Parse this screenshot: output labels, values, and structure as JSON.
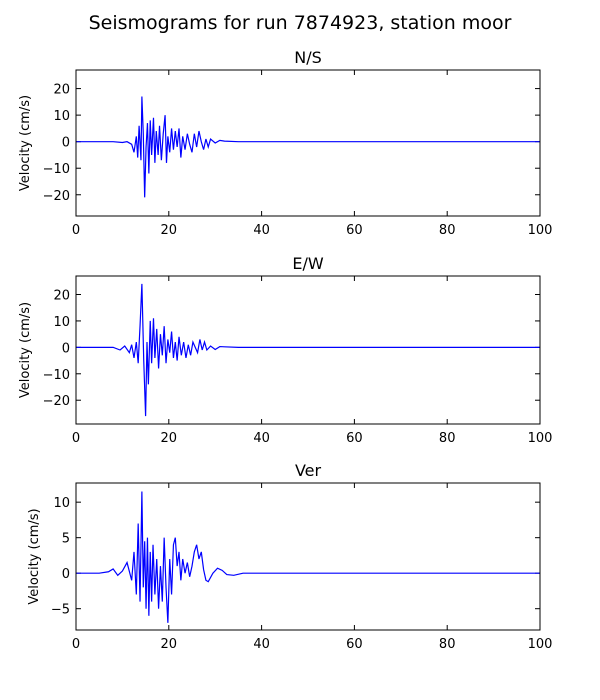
{
  "title": "Seismograms for run 7874923, station moor",
  "chart_data": [
    {
      "type": "line",
      "title": "N/S",
      "ylabel": "Velocity (cm/s)",
      "xlim": [
        0,
        100
      ],
      "xticks": [
        0,
        20,
        40,
        60,
        80,
        100
      ],
      "ylim": [
        -28,
        27
      ],
      "yticks": [
        {
          "value": -20,
          "label": "−20"
        },
        {
          "value": -10,
          "label": "−10"
        },
        0,
        10,
        20
      ],
      "series": [
        {
          "color": "#0000ff",
          "x": [
            0,
            5,
            8,
            10,
            11,
            12,
            12.5,
            13,
            13.3,
            13.6,
            14,
            14.2,
            14.5,
            14.8,
            15.1,
            15.4,
            15.7,
            16,
            16.3,
            16.7,
            17,
            17.3,
            17.7,
            18,
            18.4,
            18.8,
            19.2,
            19.5,
            19.8,
            20.2,
            20.6,
            21,
            21.4,
            21.8,
            22.2,
            22.6,
            23,
            23.5,
            24,
            24.5,
            25,
            25.5,
            26,
            26.5,
            27,
            27.5,
            28,
            28.5,
            29,
            30,
            31,
            32,
            35,
            40,
            100
          ],
          "values": [
            0,
            0,
            0,
            -0.3,
            0,
            -1,
            -4,
            2,
            -6,
            6,
            -7,
            17,
            3,
            -21,
            -2,
            7,
            -12,
            8,
            -5,
            9,
            -8,
            4,
            -5,
            6,
            -7,
            3,
            10,
            -8,
            2,
            -4,
            5,
            -3,
            4,
            -2,
            5,
            -6,
            2,
            -3,
            3,
            -1,
            -4,
            3,
            -2,
            4,
            0,
            -3,
            1,
            -2,
            1,
            -0.5,
            0.5,
            0.2,
            0,
            0,
            0
          ]
        }
      ]
    },
    {
      "type": "line",
      "title": "E/W",
      "ylabel": "Velocity (cm/s)",
      "xlim": [
        0,
        100
      ],
      "xticks": [
        0,
        20,
        40,
        60,
        80,
        100
      ],
      "ylim": [
        -29,
        27
      ],
      "yticks": [
        {
          "value": -20,
          "label": "−20"
        },
        {
          "value": -10,
          "label": "−10"
        },
        0,
        10,
        20
      ],
      "series": [
        {
          "color": "#0000ff",
          "x": [
            0,
            5,
            8,
            9.5,
            10.5,
            11.5,
            12,
            12.5,
            13,
            13.4,
            13.8,
            14.2,
            14.6,
            15,
            15.3,
            15.6,
            16,
            16.3,
            16.7,
            17,
            17.4,
            17.8,
            18.2,
            18.6,
            19,
            19.4,
            19.8,
            20.2,
            20.6,
            21,
            21.4,
            21.8,
            22.2,
            22.7,
            23.2,
            23.7,
            24.2,
            24.7,
            25.2,
            25.7,
            26.2,
            26.7,
            27.2,
            27.7,
            28.2,
            29,
            30,
            31,
            32,
            35,
            40,
            100
          ],
          "values": [
            0,
            0,
            0,
            -1,
            0.5,
            -2,
            1,
            -4,
            2,
            -6,
            8,
            24,
            -5,
            -26,
            2,
            -14,
            10,
            -6,
            11,
            -4,
            7,
            -8,
            5,
            -3,
            8,
            -6,
            3,
            -2,
            6,
            -4,
            2,
            -5,
            4,
            -3,
            2,
            -4,
            1,
            -3,
            2,
            0,
            -2,
            3,
            -1,
            2,
            -1,
            0.5,
            -0.8,
            0.3,
            0.2,
            0,
            0,
            0
          ]
        }
      ]
    },
    {
      "type": "line",
      "title": "Ver",
      "ylabel": "Velocity (cm/s)",
      "xlim": [
        0,
        100
      ],
      "xticks": [
        0,
        20,
        40,
        60,
        80,
        100
      ],
      "ylim": [
        -8,
        12.7
      ],
      "yticks": [
        {
          "value": -5,
          "label": "−5"
        },
        0,
        5,
        10
      ],
      "series": [
        {
          "color": "#0000ff",
          "x": [
            0,
            5,
            7,
            8,
            9,
            10,
            11,
            12,
            12.5,
            13,
            13.4,
            13.8,
            14.2,
            14.5,
            14.8,
            15.1,
            15.4,
            15.7,
            16,
            16.3,
            16.6,
            17,
            17.4,
            17.8,
            18.2,
            18.6,
            19,
            19.4,
            19.8,
            20.2,
            20.6,
            21,
            21.4,
            21.8,
            22.2,
            22.6,
            23,
            23.5,
            24,
            24.5,
            25,
            25.5,
            26,
            26.5,
            27,
            27.5,
            28,
            28.5,
            29.5,
            30.5,
            31.5,
            32.5,
            34,
            36,
            40,
            100
          ],
          "values": [
            0,
            0,
            0.2,
            0.6,
            -0.3,
            0.3,
            1.5,
            -1,
            3,
            -3,
            7,
            -4,
            11.5,
            -2,
            4.5,
            -5,
            5,
            -6,
            3,
            -4,
            4,
            -3,
            2,
            -5,
            1,
            -4,
            5,
            -2,
            -7,
            2,
            -3,
            4,
            5,
            1,
            3,
            -1,
            2,
            0,
            1.5,
            -0.5,
            1,
            3,
            4,
            2,
            3,
            0.5,
            -1,
            -1.2,
            0,
            0.7,
            0.4,
            -0.2,
            -0.3,
            0,
            0,
            0
          ]
        }
      ]
    }
  ]
}
